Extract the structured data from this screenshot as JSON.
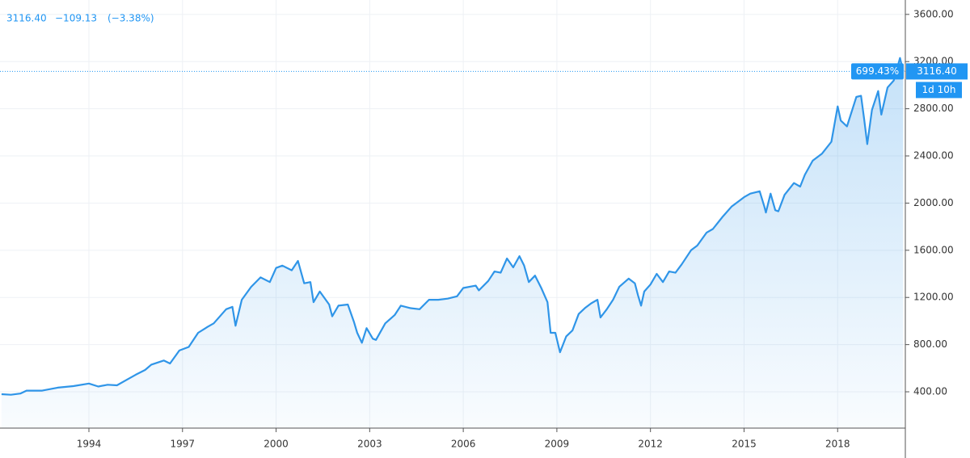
{
  "chart_data": {
    "type": "area",
    "header": {
      "price": "3116.40",
      "change": "−109.13",
      "change_pct": "(−3.38%)"
    },
    "price_line": {
      "value": 3116.4,
      "percent_label": "699.43%",
      "price_label": "3116.40",
      "countdown": "1d 10h"
    },
    "color": "#2f95e8",
    "grid": true,
    "xlim": [
      1991.15,
      2020.17
    ],
    "xticks": [
      1994,
      1997,
      2000,
      2003,
      2006,
      2009,
      2012,
      2015,
      2018
    ],
    "ylim": [
      92,
      3722
    ],
    "yticks": [
      {
        "value": 400,
        "label": "400.00"
      },
      {
        "value": 800,
        "label": "800.00"
      },
      {
        "value": 1200,
        "label": "1200.00"
      },
      {
        "value": 1600,
        "label": "1600.00"
      },
      {
        "value": 2000,
        "label": "2000.00"
      },
      {
        "value": 2400,
        "label": "2400.00"
      },
      {
        "value": 2800,
        "label": "2800.00"
      },
      {
        "value": 3200,
        "label": "3200.00"
      },
      {
        "value": 3600,
        "label": "3600.00"
      }
    ],
    "x": [
      1991.2,
      1991.5,
      1991.8,
      1992.0,
      1992.5,
      1993.0,
      1993.5,
      1994.0,
      1994.3,
      1994.6,
      1994.9,
      1995.2,
      1995.5,
      1995.8,
      1996.0,
      1996.4,
      1996.6,
      1996.9,
      1997.2,
      1997.5,
      1997.8,
      1998.0,
      1998.4,
      1998.6,
      1998.7,
      1998.9,
      1999.2,
      1999.5,
      1999.8,
      2000.0,
      2000.2,
      2000.5,
      2000.7,
      2000.9,
      2001.1,
      2001.2,
      2001.4,
      2001.7,
      2001.8,
      2002.0,
      2002.3,
      2002.5,
      2002.6,
      2002.75,
      2002.9,
      2003.1,
      2003.2,
      2003.5,
      2003.8,
      2004.0,
      2004.3,
      2004.6,
      2004.9,
      2005.2,
      2005.5,
      2005.8,
      2006.0,
      2006.4,
      2006.5,
      2006.8,
      2007.0,
      2007.2,
      2007.4,
      2007.6,
      2007.8,
      2007.95,
      2008.1,
      2008.3,
      2008.5,
      2008.7,
      2008.8,
      2008.95,
      2009.1,
      2009.3,
      2009.5,
      2009.7,
      2009.9,
      2010.1,
      2010.3,
      2010.4,
      2010.6,
      2010.8,
      2011.0,
      2011.3,
      2011.5,
      2011.6,
      2011.7,
      2011.8,
      2012.0,
      2012.2,
      2012.4,
      2012.6,
      2012.8,
      2013.0,
      2013.3,
      2013.5,
      2013.8,
      2014.0,
      2014.3,
      2014.6,
      2014.8,
      2015.0,
      2015.2,
      2015.5,
      2015.65,
      2015.7,
      2015.85,
      2016.0,
      2016.1,
      2016.3,
      2016.6,
      2016.8,
      2016.95,
      2017.2,
      2017.5,
      2017.8,
      2018.0,
      2018.1,
      2018.3,
      2018.6,
      2018.75,
      2018.85,
      2018.95,
      2019.1,
      2019.3,
      2019.4,
      2019.6,
      2019.8,
      2020.0,
      2020.1
    ],
    "values": [
      380,
      375,
      385,
      410,
      410,
      435,
      448,
      470,
      445,
      460,
      455,
      500,
      545,
      585,
      630,
      665,
      640,
      750,
      780,
      900,
      950,
      980,
      1100,
      1120,
      960,
      1180,
      1290,
      1370,
      1330,
      1450,
      1470,
      1430,
      1510,
      1320,
      1330,
      1160,
      1250,
      1140,
      1040,
      1130,
      1140,
      990,
      900,
      815,
      940,
      850,
      840,
      980,
      1050,
      1130,
      1110,
      1100,
      1180,
      1180,
      1190,
      1210,
      1280,
      1300,
      1260,
      1340,
      1420,
      1410,
      1530,
      1455,
      1550,
      1470,
      1330,
      1385,
      1280,
      1160,
      900,
      900,
      735,
      870,
      920,
      1060,
      1110,
      1150,
      1180,
      1030,
      1100,
      1180,
      1290,
      1360,
      1320,
      1220,
      1130,
      1250,
      1310,
      1400,
      1330,
      1420,
      1410,
      1480,
      1600,
      1640,
      1750,
      1780,
      1880,
      1970,
      2010,
      2050,
      2080,
      2100,
      1970,
      1920,
      2080,
      1940,
      1930,
      2070,
      2170,
      2140,
      2240,
      2360,
      2420,
      2520,
      2820,
      2700,
      2650,
      2900,
      2910,
      2710,
      2500,
      2790,
      2950,
      2750,
      2980,
      3040,
      3230,
      3116.4
    ]
  }
}
